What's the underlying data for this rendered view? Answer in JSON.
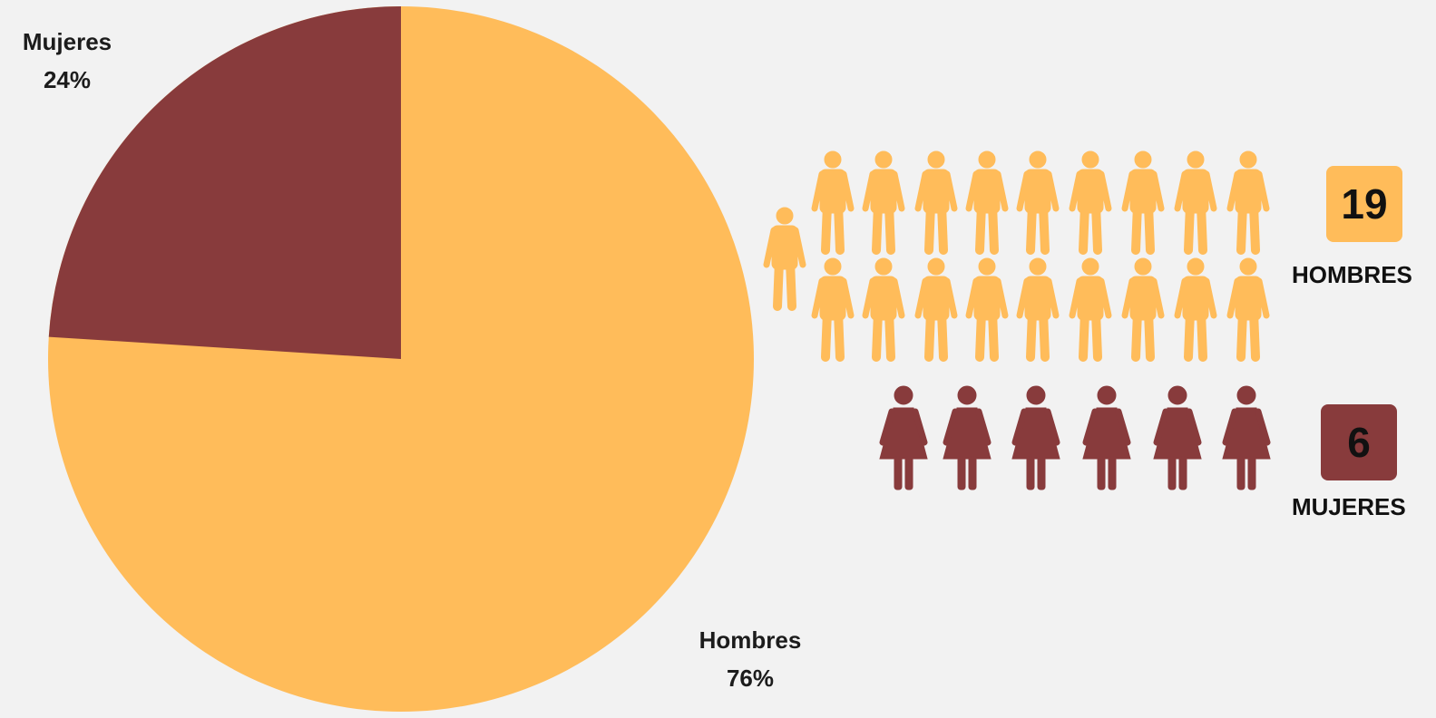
{
  "chart_data": {
    "type": "pie",
    "slices": [
      {
        "name": "Hombres",
        "percent": "76%",
        "value": 76,
        "color": "#ffbc5a"
      },
      {
        "name": "Mujeres",
        "percent": "24%",
        "value": 24,
        "color": "#883b3c"
      }
    ]
  },
  "pictogram": {
    "men": {
      "count": 19,
      "count_text": "19",
      "label": "HOMBRES",
      "color": "#ffbc5a",
      "icon": "man-icon"
    },
    "women": {
      "count": 6,
      "count_text": "6",
      "label": "MUJERES",
      "color": "#883b3c",
      "icon": "woman-icon"
    }
  },
  "colors": {
    "background": "#f2f2f2",
    "text": "#1c1c1c"
  }
}
